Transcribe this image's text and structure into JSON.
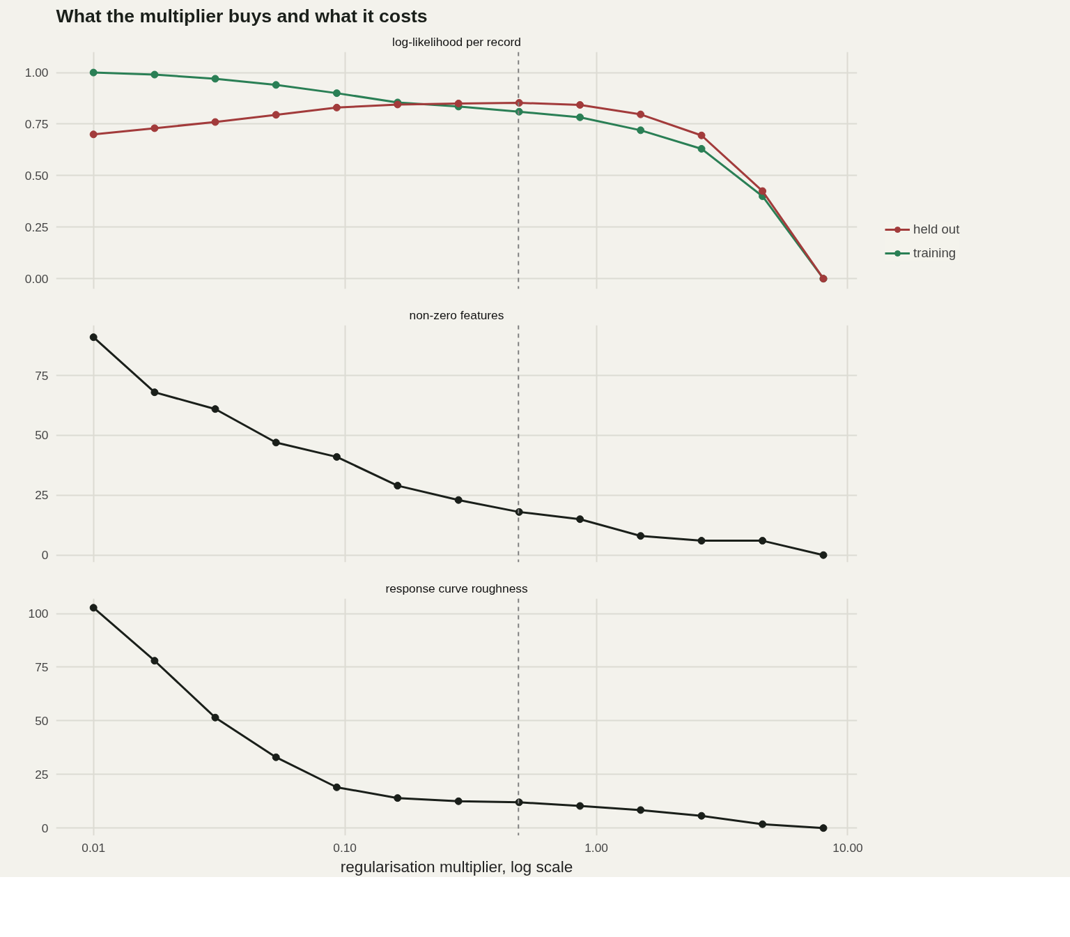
{
  "chart_data": [
    {
      "type": "line",
      "title": "What the multiplier buys and what it costs",
      "subtitle": "log-likelihood per record",
      "log": "x",
      "x": [
        0.01,
        0.0175,
        0.0305,
        0.0532,
        0.0928,
        0.162,
        0.283,
        0.493,
        0.861,
        1.5,
        2.62,
        4.58,
        8.0
      ],
      "series": [
        {
          "name": "held out",
          "color": "#a23b3b",
          "values": [
            0.7,
            0.73,
            0.76,
            0.795,
            0.83,
            0.845,
            0.85,
            0.853,
            0.843,
            0.797,
            0.695,
            0.425,
            0.0
          ]
        },
        {
          "name": "training",
          "color": "#2a7f55",
          "values": [
            1.0,
            0.99,
            0.97,
            0.94,
            0.9,
            0.855,
            0.835,
            0.81,
            0.783,
            0.72,
            0.63,
            0.4,
            0.0
          ]
        }
      ],
      "xlim": [
        0.0071,
        10.9
      ],
      "xticks": [
        {
          "value": 0.01,
          "label": null
        },
        {
          "value": 0.1,
          "label": null
        },
        {
          "value": 1,
          "label": null
        },
        {
          "value": 10,
          "label": null
        }
      ],
      "ylim": [
        -0.05,
        1.1
      ],
      "yticks": [
        {
          "value": 0,
          "label": "0.00"
        },
        {
          "value": 0.25,
          "label": "0.25"
        },
        {
          "value": 0.5,
          "label": "0.50"
        },
        {
          "value": 0.75,
          "label": "0.75"
        },
        {
          "value": 1,
          "label": "1.00"
        }
      ],
      "ref_lines": [
        {
          "axis": "x",
          "value": 0.49,
          "color": "#808080",
          "line_style": "dashed"
        }
      ],
      "grid": true,
      "legend": "right",
      "marker": "circle",
      "line_style": "solid",
      "tick_labels": "y"
    },
    {
      "type": "line",
      "subtitle": "non-zero features",
      "log": "x",
      "x": [
        0.01,
        0.0175,
        0.0305,
        0.0532,
        0.0928,
        0.162,
        0.283,
        0.493,
        0.861,
        1.5,
        2.62,
        4.58,
        8.0
      ],
      "series": [
        {
          "color": "#1a1f1a",
          "values": [
            91,
            68,
            61,
            47,
            41,
            29,
            23,
            18,
            15,
            8,
            6,
            6,
            0
          ]
        }
      ],
      "xlim": [
        0.0071,
        10.9
      ],
      "xticks": [
        {
          "value": 0.01,
          "label": null
        },
        {
          "value": 0.1,
          "label": null
        },
        {
          "value": 1,
          "label": null
        },
        {
          "value": 10,
          "label": null
        }
      ],
      "ylim": [
        -3,
        96
      ],
      "yticks": [
        0,
        25,
        50,
        75
      ],
      "ref_lines": [
        {
          "axis": "x",
          "value": 0.49,
          "color": "#808080",
          "line_style": "dashed"
        }
      ],
      "grid": true,
      "marker": "circle",
      "line_style": "solid",
      "tick_labels": "y"
    },
    {
      "type": "line",
      "subtitle": "response curve roughness",
      "xlabel": "regularisation multiplier, log scale",
      "log": "x",
      "x": [
        0.01,
        0.0175,
        0.0305,
        0.0532,
        0.0928,
        0.162,
        0.283,
        0.493,
        0.861,
        1.5,
        2.62,
        4.58,
        8.0
      ],
      "series": [
        {
          "color": "#1a1f1a",
          "values": [
            102.7,
            78,
            51.5,
            33,
            19,
            14,
            12.5,
            12,
            10.3,
            8.4,
            5.7,
            1.8,
            0
          ]
        }
      ],
      "xlim": [
        0.0071,
        10.9
      ],
      "xticks": [
        {
          "value": 0.01,
          "label": "0.01"
        },
        {
          "value": 0.1,
          "label": "0.10"
        },
        {
          "value": 1,
          "label": "1.00"
        },
        {
          "value": 10,
          "label": "10.00"
        }
      ],
      "ylim": [
        -3.5,
        107
      ],
      "yticks": [
        0,
        25,
        50,
        75,
        100
      ],
      "ref_lines": [
        {
          "axis": "x",
          "value": 0.49,
          "color": "#808080",
          "line_style": "dashed"
        }
      ],
      "grid": true,
      "marker": "circle",
      "line_style": "solid"
    }
  ]
}
